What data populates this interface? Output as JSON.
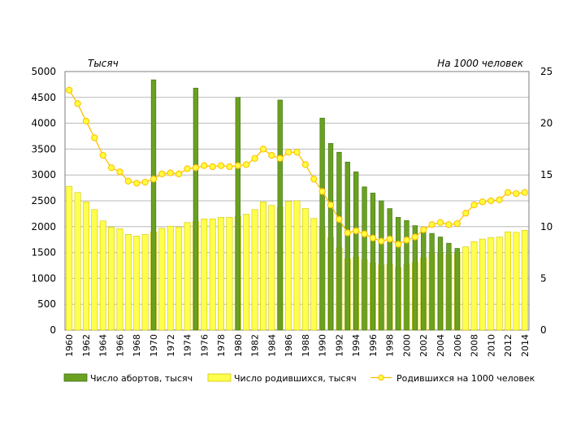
{
  "chart_data": {
    "type": "bar",
    "title": "",
    "left_axis_unit": "Тысяч",
    "right_axis_unit": "На 1000 человек",
    "ylim_left": [
      0,
      5000
    ],
    "yticks_left": [
      0,
      500,
      1000,
      1500,
      2000,
      2500,
      3000,
      3500,
      4000,
      4500,
      5000
    ],
    "ylim_right": [
      0,
      25
    ],
    "yticks_right": [
      0,
      5,
      10,
      15,
      20,
      25
    ],
    "years": [
      1960,
      1961,
      1962,
      1963,
      1964,
      1965,
      1966,
      1967,
      1968,
      1969,
      1970,
      1971,
      1972,
      1973,
      1974,
      1975,
      1976,
      1977,
      1978,
      1979,
      1980,
      1981,
      1982,
      1983,
      1984,
      1985,
      1986,
      1987,
      1988,
      1989,
      1990,
      1991,
      1992,
      1993,
      1994,
      1995,
      1996,
      1997,
      1998,
      1999,
      2000,
      2001,
      2002,
      2003,
      2004,
      2005,
      2006,
      2007,
      2008,
      2009,
      2010,
      2011,
      2012,
      2013,
      2014
    ],
    "x_tick_labels": [
      "1960",
      "1962",
      "1964",
      "1966",
      "1968",
      "1970",
      "1972",
      "1974",
      "1976",
      "1978",
      "1980",
      "1982",
      "1984",
      "1986",
      "1988",
      "1990",
      "1992",
      "1994",
      "1996",
      "1998",
      "2000",
      "2002",
      "2004",
      "2006",
      "2008",
      "2010",
      "2012",
      "2014"
    ],
    "series": [
      {
        "name": "Число абортов, тысяч",
        "type": "bar",
        "axis": "left",
        "color": "#6aa121",
        "edge": "#3f7010",
        "values": [
          null,
          null,
          null,
          null,
          null,
          null,
          null,
          null,
          null,
          null,
          4840,
          null,
          null,
          null,
          null,
          4680,
          null,
          null,
          null,
          null,
          4500,
          null,
          null,
          null,
          null,
          4450,
          null,
          null,
          null,
          null,
          4100,
          3610,
          3440,
          3250,
          3060,
          2770,
          2650,
          2500,
          2350,
          2180,
          2120,
          2020,
          1950,
          1870,
          1800,
          1680,
          1580,
          1480,
          1380,
          1300,
          1190,
          1120,
          1060,
          1000,
          920
        ]
      },
      {
        "name": "Число родившихся, тысяч",
        "type": "bar",
        "axis": "left",
        "color": "#ffff4d",
        "edge": "#d4c400",
        "values": [
          2780,
          2660,
          2480,
          2330,
          2110,
          1990,
          1960,
          1850,
          1820,
          1850,
          1900,
          1970,
          2010,
          1990,
          2080,
          2100,
          2150,
          2150,
          2180,
          2180,
          2200,
          2240,
          2330,
          2480,
          2410,
          2380,
          2490,
          2500,
          2350,
          2160,
          1990,
          1790,
          1590,
          1380,
          1410,
          1360,
          1300,
          1260,
          1280,
          1210,
          1270,
          1310,
          1400,
          1480,
          1500,
          1460,
          1480,
          1610,
          1710,
          1760,
          1790,
          1800,
          1900,
          1890,
          1930
        ]
      },
      {
        "name": "Родившихся на 1000 человек",
        "type": "line",
        "axis": "right",
        "color": "#ffc000",
        "marker_fill": "#ffff40",
        "values": [
          23.2,
          21.9,
          20.2,
          18.6,
          16.9,
          15.7,
          15.3,
          14.4,
          14.2,
          14.3,
          14.6,
          15.1,
          15.2,
          15.1,
          15.6,
          15.7,
          15.9,
          15.8,
          15.9,
          15.8,
          15.9,
          16.0,
          16.6,
          17.5,
          16.9,
          16.6,
          17.2,
          17.2,
          16.0,
          14.6,
          13.4,
          12.1,
          10.7,
          9.4,
          9.6,
          9.3,
          8.9,
          8.6,
          8.8,
          8.3,
          8.7,
          9.0,
          9.7,
          10.2,
          10.4,
          10.2,
          10.3,
          11.3,
          12.1,
          12.4,
          12.5,
          12.6,
          13.3,
          13.2,
          13.3
        ]
      }
    ],
    "legend": {
      "position": "bottom",
      "entries": [
        "Число абортов, тысяч",
        "Число родившихся, тысяч",
        "Родившихся на 1000 человек"
      ]
    },
    "grid": true
  }
}
